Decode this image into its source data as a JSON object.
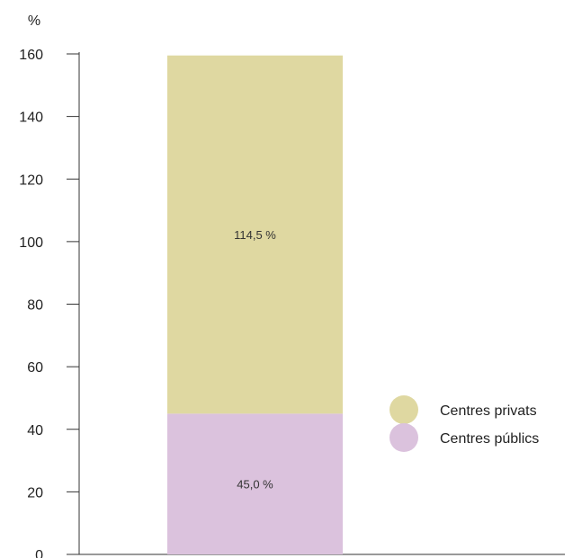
{
  "chart_data": {
    "type": "bar",
    "stacked": true,
    "unit_label": "%",
    "categories": [
      ""
    ],
    "series": [
      {
        "name": "Centres públics",
        "values": [
          45.0
        ],
        "label": "45,0 %",
        "color": "#dbc2dd"
      },
      {
        "name": "Centres privats",
        "values": [
          114.5
        ],
        "label": "114,5 %",
        "color": "#dfd8a1"
      }
    ],
    "ylim": [
      0,
      160
    ],
    "yticks": [
      0,
      20,
      40,
      60,
      80,
      100,
      120,
      140,
      160
    ],
    "grid": false,
    "legend_position": "right",
    "legend_order": [
      "Centres privats",
      "Centres públics"
    ]
  }
}
